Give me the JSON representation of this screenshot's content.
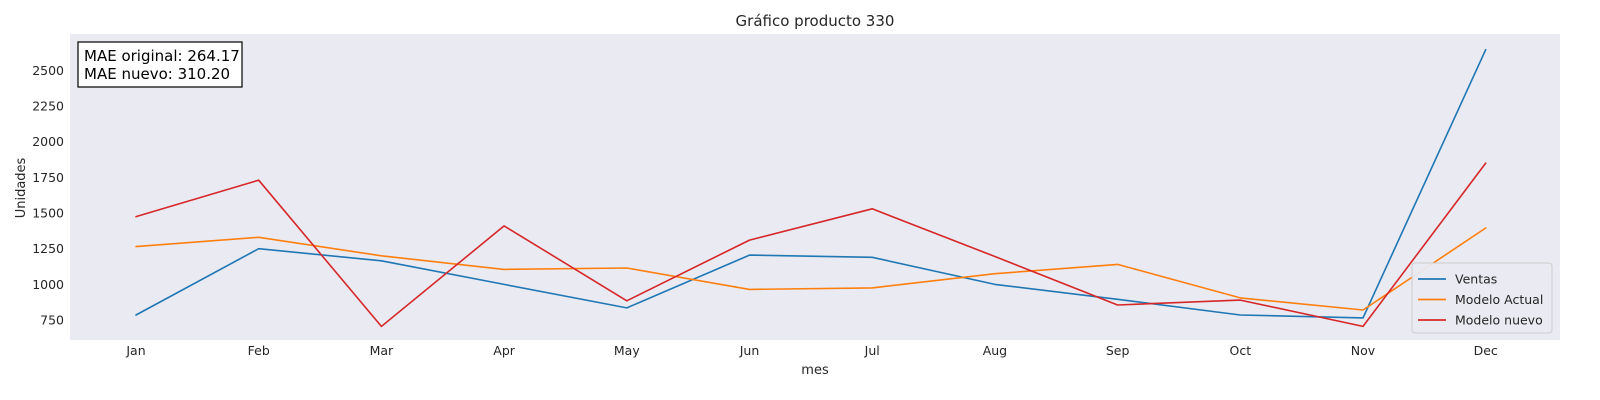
{
  "chart_data": {
    "type": "line",
    "title": "Gráfico producto 330",
    "xlabel": "mes",
    "ylabel": "Unidades",
    "categories": [
      "Jan",
      "Feb",
      "Mar",
      "Apr",
      "May",
      "Jun",
      "Jul",
      "Aug",
      "Sep",
      "Oct",
      "Nov",
      "Dec"
    ],
    "yticks": [
      750,
      1000,
      1250,
      1500,
      1750,
      2000,
      2250,
      2500
    ],
    "ylim": [
      610,
      2755
    ],
    "grid": false,
    "legend_position": "bottom-right",
    "series": [
      {
        "name": "Ventas",
        "color": "#1f77b4",
        "values": [
          785,
          1250,
          1165,
          1000,
          835,
          1205,
          1190,
          1000,
          895,
          785,
          765,
          2645
        ]
      },
      {
        "name": "Modelo Actual",
        "color": "#ff7f0e",
        "values": [
          1265,
          1330,
          1200,
          1105,
          1115,
          965,
          975,
          1075,
          1140,
          905,
          820,
          1395
        ]
      },
      {
        "name": "Modelo nuevo",
        "color": "#d62728",
        "values": [
          1475,
          1730,
          705,
          1410,
          885,
          1310,
          1530,
          1195,
          855,
          890,
          705,
          1850
        ]
      }
    ],
    "annotation": {
      "line1": "MAE original: 264.17",
      "line2": "MAE nuevo: 310.20"
    }
  },
  "colors": {
    "plot_background": "#eaeaf2",
    "text": "#262626"
  }
}
